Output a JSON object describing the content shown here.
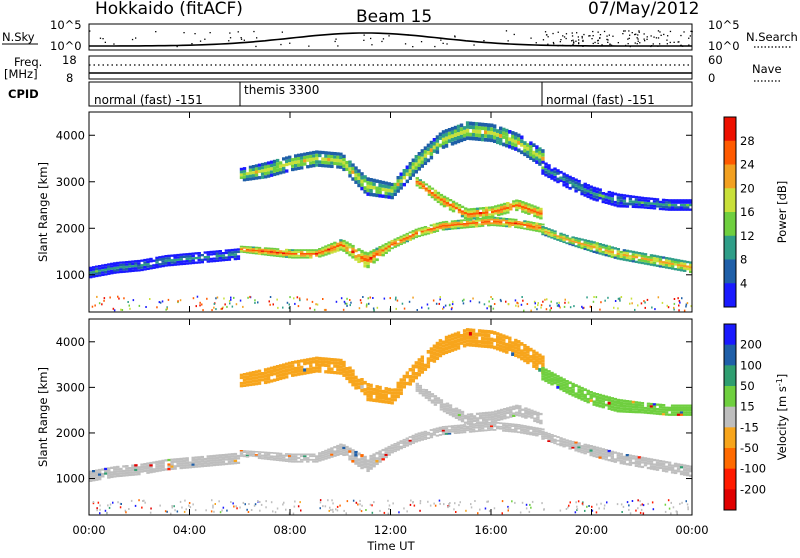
{
  "header": {
    "station": "Hokkaido (fitACF)",
    "beam": "Beam 15",
    "date": "07/May/2012"
  },
  "top_panels": {
    "nsky_label": "N.Sky",
    "nsky_ticks": [
      "10^5",
      "10^0"
    ],
    "nsearch_label": "N.Search",
    "nsearch_ticks": [
      "10^5",
      "10^0"
    ],
    "freq_label_1": "Freq.",
    "freq_label_2": "[MHz]",
    "freq_ticks": [
      "18",
      "8"
    ],
    "nave_label": "Nave",
    "nave_ticks": [
      "60",
      "0"
    ],
    "cpid_label": "CPID",
    "cpid_segments": [
      {
        "label": "normal (fast) -151",
        "start": 0,
        "end": 6
      },
      {
        "label": "themis 3300",
        "start": 6,
        "end": 18
      },
      {
        "label": "normal (fast) -151",
        "start": 18,
        "end": 24
      }
    ]
  },
  "chart_data": [
    {
      "type": "heatmap",
      "panel": "power",
      "xlabel": "",
      "ylabel": "Slant Range [km]",
      "x_unit": "hours UT",
      "xlim": [
        0,
        24
      ],
      "ylim": [
        200,
        4500
      ],
      "yticks": [
        "1000",
        "2000",
        "3000",
        "4000"
      ],
      "colorbar_label": "Power [dB]",
      "colorbar_ticks": [
        "4",
        "8",
        "12",
        "16",
        "20",
        "24",
        "28"
      ],
      "colors": [
        "#1a1aff",
        "#1f5fa8",
        "#2f9e88",
        "#6fcf3f",
        "#c9e03a",
        "#f2a020",
        "#ff5a00",
        "#ee1000"
      ],
      "bands": [
        {
          "times": [
            0,
            1,
            2,
            3,
            4,
            5,
            6
          ],
          "center": [
            1050,
            1150,
            1200,
            1300,
            1350,
            1400,
            1450
          ],
          "width": [
            250,
            250,
            250,
            250,
            250,
            250,
            250
          ],
          "level": 2
        },
        {
          "times": [
            6,
            7,
            8,
            9,
            10,
            11,
            12,
            13,
            14,
            15,
            16,
            17,
            18
          ],
          "center": [
            1550,
            1500,
            1450,
            1450,
            1650,
            1300,
            1650,
            1900,
            2050,
            2100,
            2150,
            2100,
            2000
          ],
          "width": [
            150,
            180,
            200,
            200,
            250,
            350,
            200,
            200,
            200,
            200,
            200,
            200,
            200
          ],
          "level": 6
        },
        {
          "times": [
            6,
            7,
            8,
            9,
            10,
            11,
            12,
            13,
            14,
            15,
            16,
            17,
            18
          ],
          "center": [
            3150,
            3250,
            3400,
            3500,
            3450,
            2900,
            2800,
            3400,
            3900,
            4100,
            4050,
            3850,
            3500
          ],
          "width": [
            300,
            350,
            350,
            350,
            350,
            400,
            350,
            400,
            400,
            400,
            400,
            400,
            400
          ],
          "level": 4
        },
        {
          "times": [
            13,
            14,
            15,
            16,
            17,
            18
          ],
          "center": [
            3000,
            2600,
            2300,
            2350,
            2500,
            2300
          ],
          "width": [
            200,
            250,
            250,
            250,
            250,
            250
          ],
          "level": 6
        },
        {
          "times": [
            18,
            19,
            20,
            21,
            22,
            23,
            24
          ],
          "center": [
            1950,
            1750,
            1600,
            1450,
            1350,
            1250,
            1150
          ],
          "width": [
            200,
            200,
            250,
            250,
            250,
            250,
            250
          ],
          "level": 5
        },
        {
          "times": [
            18,
            19,
            20,
            21,
            22,
            23,
            24
          ],
          "center": [
            3300,
            3000,
            2750,
            2600,
            2550,
            2500,
            2500
          ],
          "width": [
            300,
            300,
            300,
            300,
            250,
            250,
            250
          ],
          "level": 2
        }
      ]
    },
    {
      "type": "heatmap",
      "panel": "velocity",
      "xlabel": "Time UT",
      "ylabel": "Slant Range [km]",
      "x_unit": "hours UT",
      "xlim": [
        0,
        24
      ],
      "ylim": [
        200,
        4500
      ],
      "xticks": [
        "00:00",
        "04:00",
        "08:00",
        "12:00",
        "16:00",
        "20:00",
        "00:00"
      ],
      "yticks": [
        "1000",
        "2000",
        "3000",
        "4000"
      ],
      "colorbar_label": "Velocity [m s",
      "colorbar_label_sup": "-1",
      "colorbar_label_end": "]",
      "colorbar_ticks": [
        "200",
        "100",
        "50",
        "15",
        "-15",
        "-50",
        "-100",
        "-200"
      ],
      "colors": [
        "#1a1aff",
        "#1f5fa8",
        "#2f9e70",
        "#6fcf3f",
        "#bebebe",
        "#f7a51c",
        "#ff6a00",
        "#ff1a00",
        "#e00000"
      ],
      "bands": [
        {
          "times": [
            0,
            1,
            2,
            3,
            4,
            5,
            6
          ],
          "center": [
            1050,
            1150,
            1200,
            1300,
            1350,
            1400,
            1450
          ],
          "width": [
            250,
            250,
            250,
            250,
            250,
            250,
            250
          ],
          "level": 4
        },
        {
          "times": [
            6,
            7,
            8,
            9,
            10,
            11,
            12,
            13,
            14,
            15,
            16,
            17,
            18
          ],
          "center": [
            1550,
            1500,
            1450,
            1450,
            1650,
            1300,
            1650,
            1900,
            2050,
            2100,
            2150,
            2100,
            2000
          ],
          "width": [
            150,
            180,
            200,
            200,
            250,
            350,
            200,
            200,
            200,
            200,
            200,
            200,
            200
          ],
          "level": 4
        },
        {
          "times": [
            6,
            7,
            8,
            9,
            10,
            11,
            12,
            13,
            14,
            15,
            16,
            17,
            18
          ],
          "center": [
            3150,
            3250,
            3400,
            3500,
            3450,
            2900,
            2800,
            3400,
            3900,
            4100,
            4050,
            3850,
            3500
          ],
          "width": [
            300,
            350,
            350,
            350,
            350,
            400,
            350,
            400,
            400,
            400,
            400,
            400,
            400
          ],
          "level": 5
        },
        {
          "times": [
            13,
            14,
            15,
            16,
            17,
            18
          ],
          "center": [
            3000,
            2600,
            2300,
            2350,
            2500,
            2300
          ],
          "width": [
            200,
            250,
            250,
            250,
            250,
            250
          ],
          "level": 4
        },
        {
          "times": [
            18,
            19,
            20,
            21,
            22,
            23,
            24
          ],
          "center": [
            1950,
            1750,
            1600,
            1450,
            1350,
            1250,
            1150
          ],
          "width": [
            200,
            200,
            250,
            250,
            250,
            250,
            250
          ],
          "level": 4
        },
        {
          "times": [
            18,
            19,
            20,
            21,
            22,
            23,
            24
          ],
          "center": [
            3300,
            3000,
            2750,
            2600,
            2550,
            2500,
            2500
          ],
          "width": [
            300,
            300,
            300,
            300,
            250,
            250,
            250
          ],
          "level": 3
        }
      ]
    }
  ]
}
